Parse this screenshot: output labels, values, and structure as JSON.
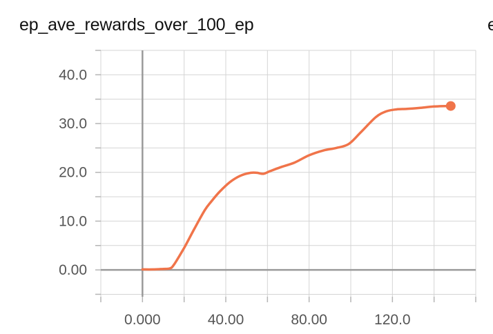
{
  "title": "ep_ave_rewards_over_100_ep",
  "next_chart_title_fragment": "e",
  "chart_data": {
    "type": "line",
    "title": "ep_ave_rewards_over_100_ep",
    "xlabel": "",
    "ylabel": "",
    "xlim": [
      -20,
      160
    ],
    "ylim": [
      -5.5,
      45
    ],
    "x_ticks": [
      0,
      40,
      80,
      120
    ],
    "x_tick_labels": [
      "0.000",
      "40.00",
      "80.00",
      "120.0"
    ],
    "y_ticks": [
      0,
      10,
      20,
      30,
      40
    ],
    "y_tick_labels": [
      "0.00",
      "10.0",
      "20.0",
      "30.0",
      "40.0"
    ],
    "grid": true,
    "series": [
      {
        "color": "#f0744a",
        "x": [
          0,
          5,
          10,
          13,
          15,
          20,
          25,
          30,
          33,
          37,
          42,
          47,
          52,
          55,
          58,
          61,
          66,
          73,
          80,
          87,
          93,
          99,
          105,
          112,
          117,
          122,
          127,
          133,
          140,
          148
        ],
        "y": [
          0.1,
          0.1,
          0.2,
          0.3,
          1.0,
          4.5,
          8.5,
          12.3,
          14.0,
          16.0,
          18.0,
          19.3,
          19.9,
          19.9,
          19.7,
          20.2,
          21.0,
          22.0,
          23.5,
          24.5,
          25.0,
          25.8,
          28.3,
          31.3,
          32.5,
          32.9,
          33.0,
          33.2,
          33.5,
          33.6
        ],
        "end_marker": true
      }
    ]
  }
}
